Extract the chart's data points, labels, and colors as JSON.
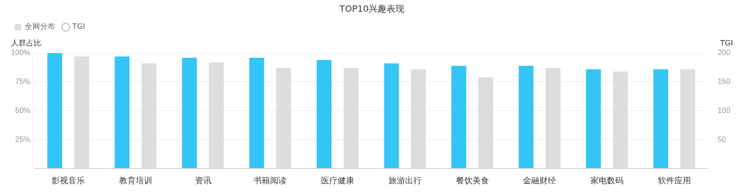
{
  "chart_data": {
    "type": "bar",
    "title": "TOP10兴趣表现",
    "ylabel": "人群占比",
    "y2label": "TGI",
    "categories": [
      "影视音乐",
      "教育培训",
      "资讯",
      "书籍阅读",
      "医疗健康",
      "旅游出行",
      "餐饮美食",
      "金融财经",
      "家电数码",
      "软件应用"
    ],
    "series": [
      {
        "color": "#33c5f5",
        "values": [
          100,
          97,
          96,
          96,
          94,
          91,
          89,
          89,
          86,
          86
        ]
      },
      {
        "name": "全网分布",
        "color": "#dddddd",
        "values": [
          97,
          91,
          92,
          87,
          87,
          86,
          79,
          87,
          84,
          86
        ]
      },
      {
        "name": "TGI",
        "type": "line",
        "marker": "circle",
        "color": "#cccccc",
        "values": [
          null,
          null,
          null,
          null,
          null,
          null,
          null,
          null,
          null,
          null
        ]
      }
    ],
    "ylim": [
      0,
      100
    ],
    "yticks": [
      {
        "value": 0,
        "label": null
      },
      {
        "value": 25,
        "label": "25%"
      },
      {
        "value": 50,
        "label": "50%"
      },
      {
        "value": 75,
        "label": "75%"
      },
      {
        "value": 100,
        "label": "100%"
      }
    ],
    "y2lim": [
      0,
      200
    ],
    "y2ticks": [
      50,
      100,
      150,
      200
    ],
    "grid": "y",
    "legend": "top left"
  }
}
